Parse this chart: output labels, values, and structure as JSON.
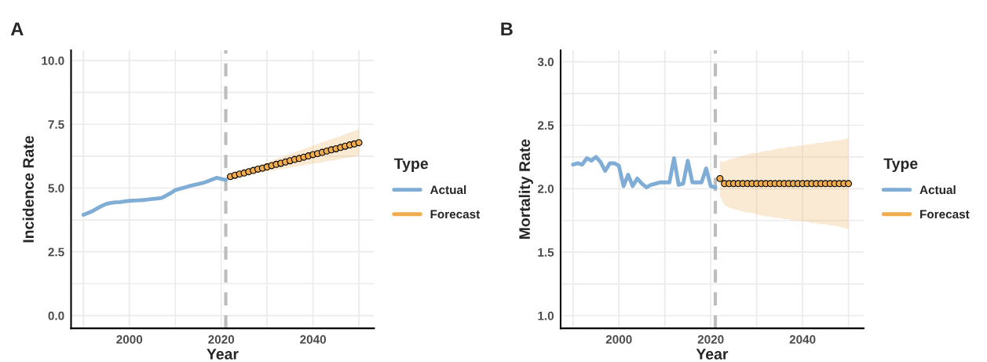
{
  "chart_data": [
    {
      "type": "line",
      "title": "A",
      "xlabel": "Year",
      "ylabel": "Incidence Rate",
      "legend_title": "Type",
      "legend": "right",
      "grid": true,
      "xlim": [
        1987.3,
        2053.3
      ],
      "xticks": [
        {
          "value": 1990,
          "label": null
        },
        2000,
        {
          "value": 2010,
          "label": null
        },
        2020,
        {
          "value": 2030,
          "label": null
        },
        2040,
        {
          "value": 2050,
          "label": null
        }
      ],
      "ylim": [
        -0.5,
        10.4
      ],
      "yticks": [
        {
          "value": 0,
          "label": "0.0"
        },
        {
          "value": 1.25,
          "label": null
        },
        2.5,
        {
          "value": 3.75,
          "label": null
        },
        {
          "value": 5,
          "label": "5.0"
        },
        {
          "value": 6.25,
          "label": null
        },
        7.5,
        {
          "value": 8.75,
          "label": null
        },
        {
          "value": 10,
          "label": "10.0"
        }
      ],
      "ref_lines": [
        {
          "axis": "x",
          "value": 2021,
          "color": "#bdbdbd",
          "line_style": "dashed"
        }
      ],
      "series": [
        {
          "name": "Actual",
          "color": "#7fadd6",
          "x": [
            1990,
            1991,
            1992,
            1993,
            1994,
            1995,
            1996,
            1997,
            1998,
            1999,
            2000,
            2001,
            2002,
            2003,
            2004,
            2005,
            2006,
            2007,
            2008,
            2009,
            2010,
            2011,
            2012,
            2013,
            2014,
            2015,
            2016,
            2017,
            2018,
            2019,
            2020,
            2021
          ],
          "values": [
            3.95,
            4.02,
            4.1,
            4.2,
            4.3,
            4.38,
            4.42,
            4.44,
            4.45,
            4.48,
            4.5,
            4.51,
            4.52,
            4.53,
            4.55,
            4.57,
            4.59,
            4.61,
            4.7,
            4.8,
            4.92,
            4.97,
            5.02,
            5.07,
            5.12,
            5.16,
            5.2,
            5.26,
            5.33,
            5.4,
            5.36,
            5.32
          ]
        },
        {
          "name": "Forecast",
          "type": "scatter",
          "color": "#f0ad4e",
          "marker": "circle",
          "x": [
            2022,
            2023,
            2024,
            2025,
            2026,
            2027,
            2028,
            2029,
            2030,
            2031,
            2032,
            2033,
            2034,
            2035,
            2036,
            2037,
            2038,
            2039,
            2040,
            2041,
            2042,
            2043,
            2044,
            2045,
            2046,
            2047,
            2048,
            2049,
            2050
          ],
          "values": [
            5.45,
            5.5,
            5.55,
            5.59,
            5.64,
            5.69,
            5.74,
            5.78,
            5.83,
            5.88,
            5.93,
            5.97,
            6.02,
            6.07,
            6.12,
            6.16,
            6.21,
            6.26,
            6.31,
            6.35,
            6.4,
            6.45,
            6.5,
            6.54,
            6.59,
            6.64,
            6.69,
            6.73,
            6.78
          ],
          "upper": [
            null,
            5.57,
            5.63,
            5.69,
            5.76,
            5.82,
            5.89,
            5.95,
            6.01,
            6.08,
            6.15,
            6.21,
            6.27,
            6.34,
            6.41,
            6.46,
            6.53,
            6.6,
            6.66,
            6.72,
            6.79,
            6.85,
            6.92,
            6.98,
            7.04,
            7.11,
            7.18,
            7.23,
            7.3
          ],
          "lower": [
            null,
            5.43,
            5.47,
            5.49,
            5.52,
            5.56,
            5.59,
            5.61,
            5.65,
            5.68,
            5.71,
            5.74,
            5.77,
            5.8,
            5.84,
            5.86,
            5.89,
            5.92,
            5.96,
            5.98,
            6.01,
            6.05,
            6.08,
            6.1,
            6.14,
            6.17,
            6.2,
            6.23,
            6.26
          ]
        }
      ]
    },
    {
      "type": "line",
      "title": "B",
      "xlabel": "Year",
      "ylabel": "Mortality Rate",
      "legend_title": "Type",
      "legend": "right",
      "grid": true,
      "xlim": [
        1987.3,
        2053.3
      ],
      "xticks": [
        {
          "value": 1990,
          "label": null
        },
        2000,
        {
          "value": 2010,
          "label": null
        },
        2020,
        {
          "value": 2030,
          "label": null
        },
        2040,
        {
          "value": 2050,
          "label": null
        }
      ],
      "ylim": [
        0.9,
        3.09
      ],
      "yticks": [
        {
          "value": 1,
          "label": "1.0"
        },
        {
          "value": 1.25,
          "label": null
        },
        1.5,
        {
          "value": 1.75,
          "label": null
        },
        {
          "value": 2,
          "label": "2.0"
        },
        {
          "value": 2.25,
          "label": null
        },
        2.5,
        {
          "value": 2.75,
          "label": null
        },
        {
          "value": 3,
          "label": "3.0"
        }
      ],
      "ref_lines": [
        {
          "axis": "x",
          "value": 2021,
          "color": "#bdbdbd",
          "line_style": "dashed"
        }
      ],
      "series": [
        {
          "name": "Actual",
          "color": "#7fadd6",
          "x": [
            1990,
            1991,
            1992,
            1993,
            1994,
            1995,
            1996,
            1997,
            1998,
            1999,
            2000,
            2001,
            2002,
            2003,
            2004,
            2005,
            2006,
            2007,
            2008,
            2009,
            2010,
            2011,
            2012,
            2013,
            2014,
            2015,
            2016,
            2017,
            2018,
            2019,
            2020,
            2021
          ],
          "values": [
            2.19,
            2.2,
            2.19,
            2.24,
            2.22,
            2.25,
            2.21,
            2.14,
            2.2,
            2.2,
            2.18,
            2.02,
            2.11,
            2.02,
            2.08,
            2.04,
            2.01,
            2.03,
            2.04,
            2.05,
            2.05,
            2.05,
            2.24,
            2.03,
            2.04,
            2.22,
            2.05,
            2.05,
            2.05,
            2.16,
            2.02,
            2.01
          ]
        },
        {
          "name": "Forecast",
          "type": "scatter",
          "color": "#f0ad4e",
          "marker": "circle",
          "x": [
            2022,
            2023,
            2024,
            2025,
            2026,
            2027,
            2028,
            2029,
            2030,
            2031,
            2032,
            2033,
            2034,
            2035,
            2036,
            2037,
            2038,
            2039,
            2040,
            2041,
            2042,
            2043,
            2044,
            2045,
            2046,
            2047,
            2048,
            2049,
            2050
          ],
          "values": [
            2.08,
            2.04,
            2.04,
            2.04,
            2.04,
            2.04,
            2.04,
            2.04,
            2.04,
            2.04,
            2.04,
            2.04,
            2.04,
            2.04,
            2.04,
            2.04,
            2.04,
            2.04,
            2.04,
            2.04,
            2.04,
            2.04,
            2.04,
            2.04,
            2.04,
            2.04,
            2.04,
            2.04,
            2.04
          ],
          "upper": [
            2.22,
            2.21,
            2.23,
            2.24,
            2.25,
            2.26,
            2.27,
            2.28,
            2.28,
            2.29,
            2.3,
            2.3,
            2.31,
            2.32,
            2.32,
            2.33,
            2.33,
            2.34,
            2.34,
            2.35,
            2.35,
            2.36,
            2.36,
            2.37,
            2.37,
            2.38,
            2.38,
            2.39,
            2.4
          ],
          "lower": [
            1.94,
            1.87,
            1.85,
            1.84,
            1.83,
            1.82,
            1.81,
            1.81,
            1.8,
            1.79,
            1.78,
            1.78,
            1.77,
            1.77,
            1.76,
            1.76,
            1.75,
            1.75,
            1.74,
            1.74,
            1.73,
            1.73,
            1.72,
            1.72,
            1.71,
            1.71,
            1.7,
            1.69,
            1.68
          ]
        }
      ]
    }
  ]
}
